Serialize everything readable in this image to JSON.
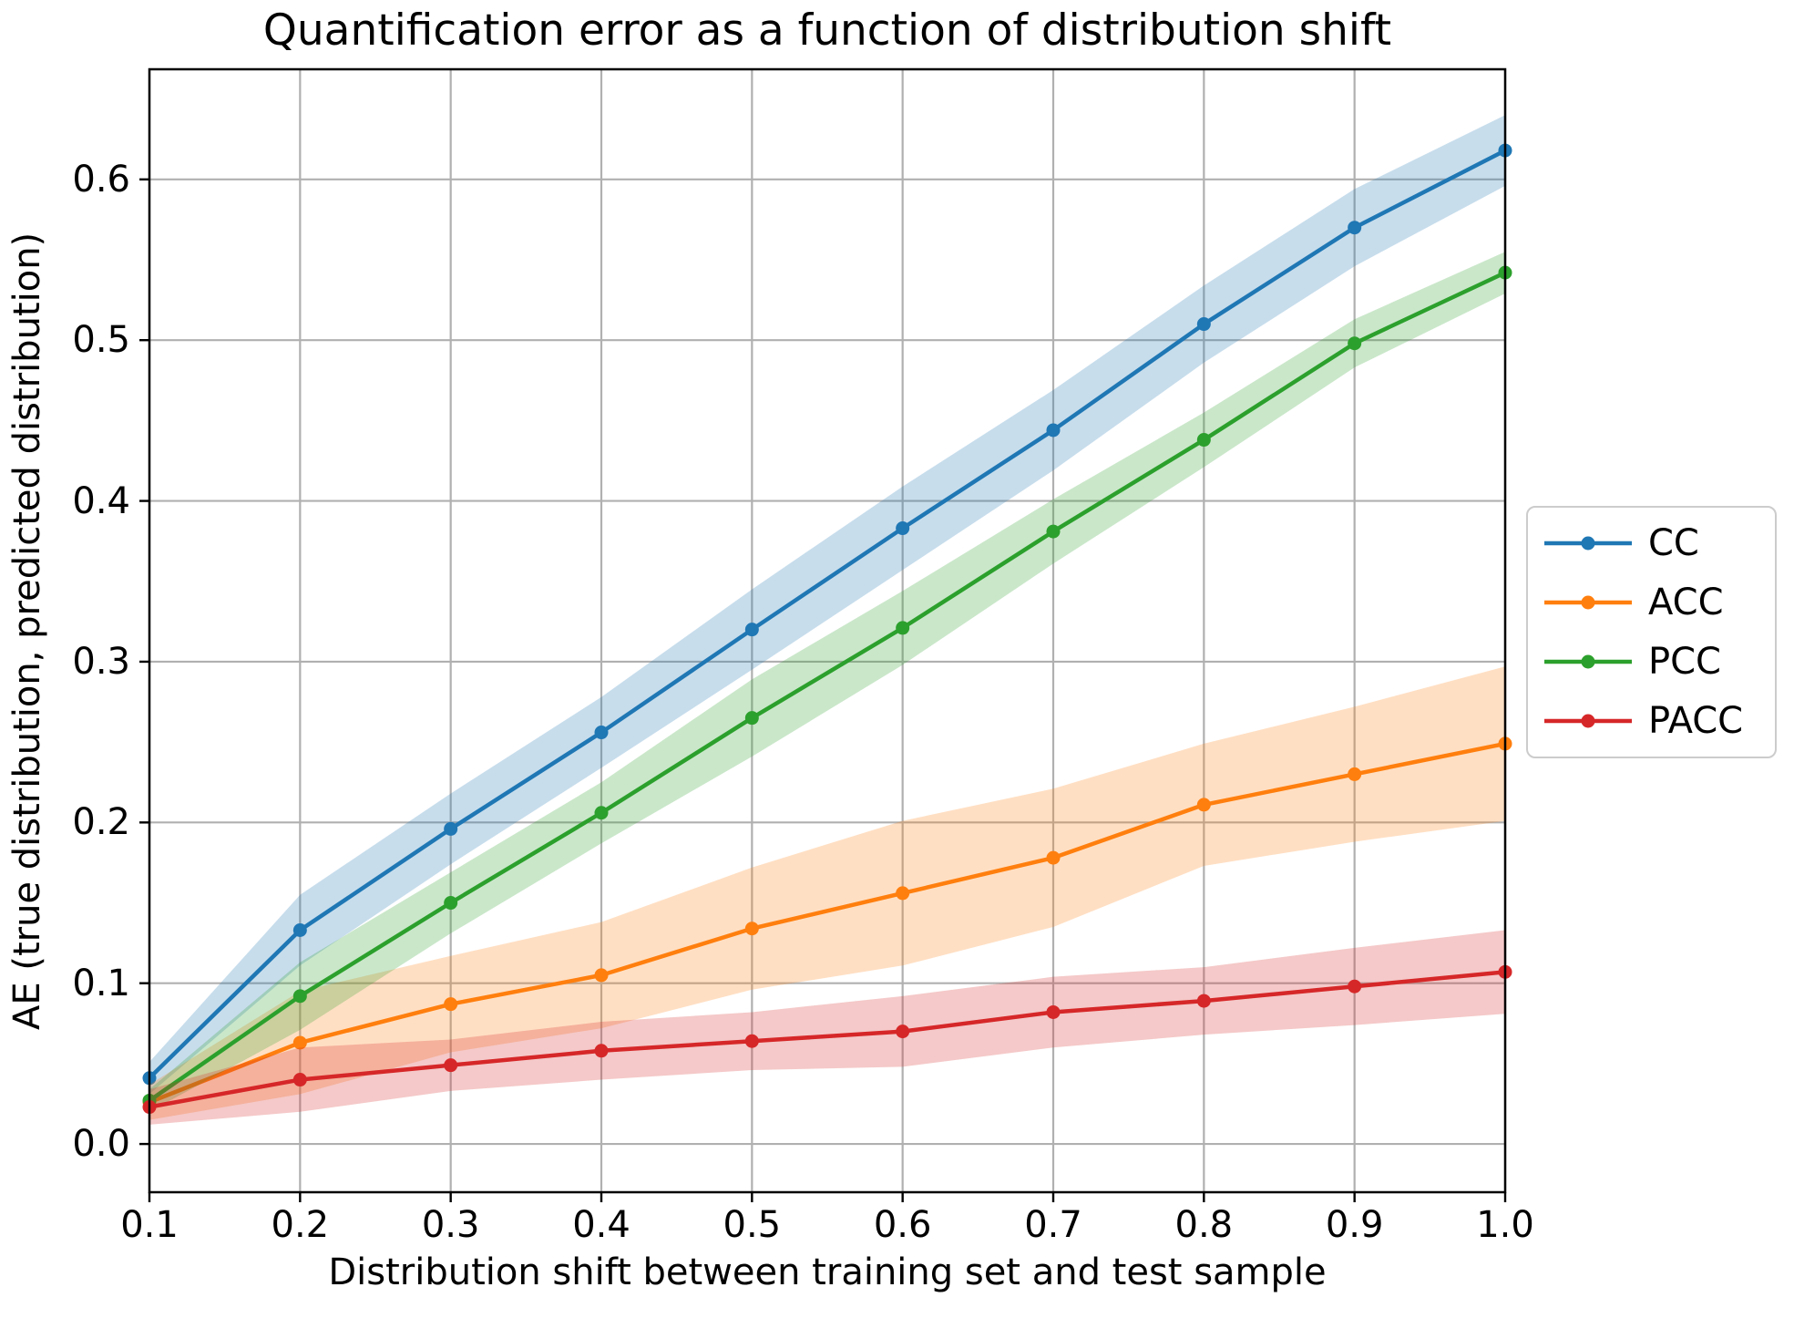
{
  "chart_data": {
    "type": "line",
    "title": "Quantification error as a function of distribution shift",
    "xlabel": "Distribution shift between training set and test sample",
    "ylabel": "AE (true distribution, predicted distribution)",
    "x": [
      0.1,
      0.2,
      0.3,
      0.4,
      0.5,
      0.6,
      0.7,
      0.8,
      0.9,
      1.0
    ],
    "x_tick_labels": [
      "0.1",
      "0.2",
      "0.3",
      "0.4",
      "0.5",
      "0.6",
      "0.7",
      "0.8",
      "0.9",
      "1.0"
    ],
    "y_tick_values": [
      0.0,
      0.1,
      0.2,
      0.3,
      0.4,
      0.5,
      0.6
    ],
    "y_tick_labels": [
      "0.0",
      "0.1",
      "0.2",
      "0.3",
      "0.4",
      "0.5",
      "0.6"
    ],
    "xlim": [
      0.1,
      1.0
    ],
    "ylim": [
      -0.03,
      0.6685
    ],
    "grid": true,
    "grid_color": "#b0b0b0",
    "band_alpha": 0.25,
    "marker": "circle",
    "legend": {
      "position": "outside-right",
      "entries": [
        "CC",
        "ACC",
        "PCC",
        "PACC"
      ]
    },
    "series": [
      {
        "name": "CC",
        "color": "#1f77b4",
        "values": [
          0.041,
          0.133,
          0.196,
          0.256,
          0.32,
          0.383,
          0.444,
          0.51,
          0.57,
          0.618
        ],
        "band_halfwidth": [
          0.01,
          0.022,
          0.022,
          0.022,
          0.025,
          0.026,
          0.025,
          0.024,
          0.024,
          0.022
        ]
      },
      {
        "name": "ACC",
        "color": "#ff7f0e",
        "values": [
          0.026,
          0.063,
          0.087,
          0.105,
          0.134,
          0.156,
          0.178,
          0.211,
          0.23,
          0.249
        ],
        "band_halfwidth": [
          0.011,
          0.032,
          0.03,
          0.033,
          0.038,
          0.045,
          0.043,
          0.038,
          0.042,
          0.048
        ]
      },
      {
        "name": "PCC",
        "color": "#2ca02c",
        "values": [
          0.027,
          0.092,
          0.15,
          0.206,
          0.265,
          0.321,
          0.381,
          0.438,
          0.498,
          0.542
        ],
        "band_halfwidth": [
          0.007,
          0.021,
          0.019,
          0.019,
          0.024,
          0.023,
          0.02,
          0.017,
          0.015,
          0.013
        ]
      },
      {
        "name": "PACC",
        "color": "#d62728",
        "values": [
          0.023,
          0.04,
          0.049,
          0.058,
          0.064,
          0.07,
          0.082,
          0.089,
          0.098,
          0.107
        ],
        "band_halfwidth": [
          0.011,
          0.02,
          0.016,
          0.018,
          0.018,
          0.022,
          0.022,
          0.021,
          0.024,
          0.026
        ]
      }
    ]
  }
}
